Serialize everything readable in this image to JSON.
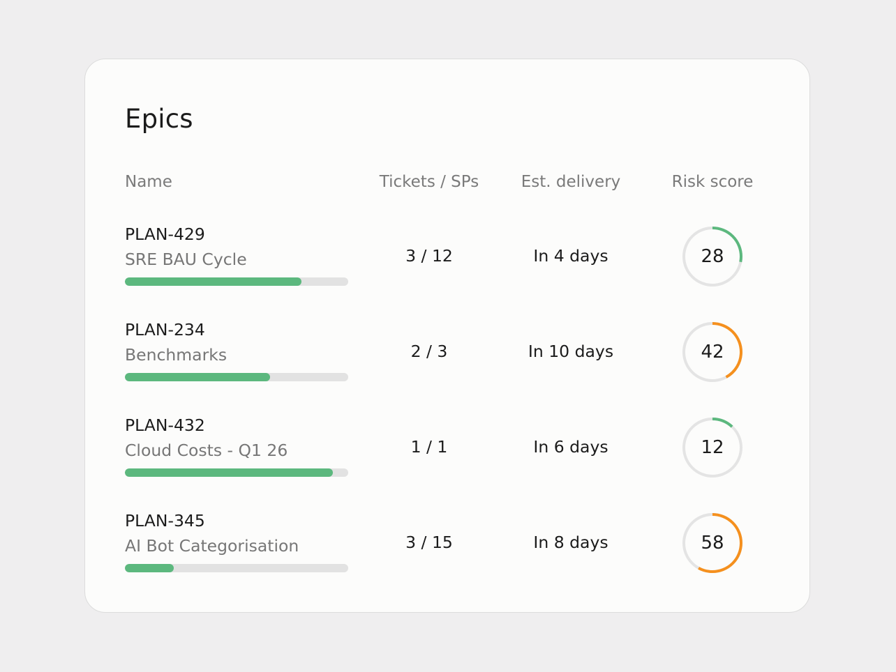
{
  "card": {
    "title": "Epics",
    "columns": {
      "name": "Name",
      "tickets": "Tickets / SPs",
      "delivery": "Est. delivery",
      "risk": "Risk score"
    }
  },
  "colors": {
    "progress_fill": "#5cb87e",
    "progress_track": "#e2e2e2",
    "risk_low": "#5cb87e",
    "risk_medium": "#f5901e",
    "gauge_track": "#e4e4e4"
  },
  "epics": [
    {
      "id": "PLAN-429",
      "name": "SRE BAU Cycle",
      "progress": 0.79,
      "tickets": "3 / 12",
      "delivery": "In 4 days",
      "risk": "28",
      "risk_level": "low"
    },
    {
      "id": "PLAN-234",
      "name": "Benchmarks",
      "progress": 0.65,
      "tickets": "2 / 3",
      "delivery": "In 10 days",
      "risk": "42",
      "risk_level": "medium"
    },
    {
      "id": "PLAN-432",
      "name": "Cloud Costs - Q1 26",
      "progress": 0.93,
      "tickets": "1 / 1",
      "delivery": "In 6 days",
      "risk": "12",
      "risk_level": "low"
    },
    {
      "id": "PLAN-345",
      "name": "AI Bot Categorisation",
      "progress": 0.22,
      "tickets": "3 / 15",
      "delivery": "In 8 days",
      "risk": "58",
      "risk_level": "medium"
    }
  ]
}
